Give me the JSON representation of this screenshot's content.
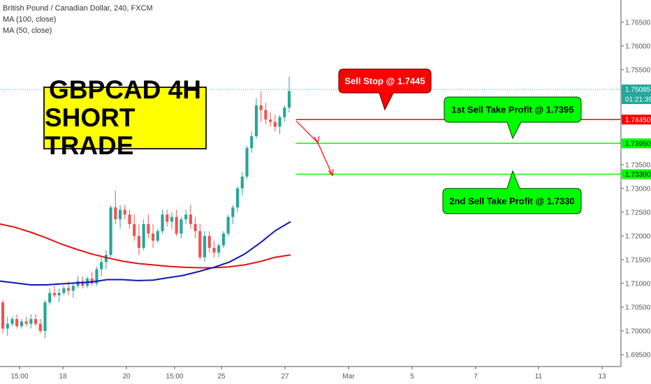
{
  "legend": {
    "symbol": "British Pound / Canadian Dollar, 240, FXCM",
    "ma100": "MA (100, close)",
    "ma50": "MA (50, close)"
  },
  "title_box": {
    "line1": "GBPCAD 4H",
    "line2": "SHORT TRADE"
  },
  "colors": {
    "up": "#26a69a",
    "down": "#ef5350",
    "ma100": "#e31010",
    "ma50": "#0a16b3",
    "sell_stop": "#ff0000",
    "take_profit": "#00ff00",
    "title_bg": "#ffff00"
  },
  "price_axis": {
    "ticks": [
      "1.76500",
      "1.76000",
      "1.75500",
      "1.75000",
      "1.74500",
      "1.74000",
      "1.73500",
      "1.73000",
      "1.72500",
      "1.72000",
      "1.71500",
      "1.71000",
      "1.70500",
      "1.70000",
      "1.69500"
    ],
    "current_price": "1.75085",
    "countdown": "01:21:39",
    "sell_stop_tag": "1.74450",
    "tp1_tag": "1.73950",
    "tp2_tag": "1.73300"
  },
  "time_axis": {
    "ticks": [
      "15:00",
      "18",
      "20",
      "15:00",
      "25",
      "27",
      "Mar",
      "5",
      "7",
      "11",
      "13"
    ]
  },
  "annotations": {
    "sell_stop": "Sell Stop @ 1.7445",
    "tp1": "1st Sell Take Profit @ 1.7395",
    "tp2": "2nd Sell Take Profit @ 1.7330"
  },
  "chart_data": {
    "type": "candlestick",
    "ylim": [
      1.6925,
      1.7685
    ],
    "y_ticks": [
      1.765,
      1.76,
      1.755,
      1.75,
      1.745,
      1.74,
      1.735,
      1.73,
      1.725,
      1.72,
      1.715,
      1.71,
      1.705,
      1.7,
      1.695
    ],
    "levels": {
      "current": 1.75085,
      "sell_stop": 1.7445,
      "take_profit_1": 1.7395,
      "take_profit_2": 1.733
    },
    "candles": [
      [
        1.706,
        1.7065,
        1.6995,
        1.7005
      ],
      [
        1.7005,
        1.703,
        1.699,
        1.7015
      ],
      [
        1.7015,
        1.703,
        1.701,
        1.7025
      ],
      [
        1.7025,
        1.7035,
        1.7005,
        1.701
      ],
      [
        1.701,
        1.7025,
        1.7005,
        1.702
      ],
      [
        1.702,
        1.703,
        1.701,
        1.7015
      ],
      [
        1.7015,
        1.7035,
        1.7005,
        1.7025
      ],
      [
        1.7025,
        1.7035,
        1.701,
        1.7015
      ],
      [
        1.7015,
        1.7025,
        1.6995,
        1.7
      ],
      [
        1.7,
        1.7065,
        1.6985,
        1.706
      ],
      [
        1.706,
        1.709,
        1.7055,
        1.708
      ],
      [
        1.708,
        1.7095,
        1.707,
        1.7075
      ],
      [
        1.7075,
        1.709,
        1.706,
        1.708
      ],
      [
        1.708,
        1.7095,
        1.7075,
        1.709
      ],
      [
        1.709,
        1.7105,
        1.7075,
        1.7085
      ],
      [
        1.7085,
        1.71,
        1.707,
        1.7095
      ],
      [
        1.7095,
        1.7115,
        1.709,
        1.7105
      ],
      [
        1.7105,
        1.7115,
        1.709,
        1.7095
      ],
      [
        1.7095,
        1.7115,
        1.709,
        1.711
      ],
      [
        1.711,
        1.7125,
        1.7095,
        1.71
      ],
      [
        1.71,
        1.7135,
        1.7095,
        1.713
      ],
      [
        1.713,
        1.7155,
        1.7115,
        1.7145
      ],
      [
        1.7145,
        1.717,
        1.713,
        1.716
      ],
      [
        1.716,
        1.7265,
        1.7155,
        1.726
      ],
      [
        1.726,
        1.7295,
        1.7225,
        1.7235
      ],
      [
        1.7235,
        1.7265,
        1.7215,
        1.7255
      ],
      [
        1.7255,
        1.7265,
        1.7235,
        1.7245
      ],
      [
        1.7245,
        1.7255,
        1.7215,
        1.7225
      ],
      [
        1.7225,
        1.7245,
        1.719,
        1.72
      ],
      [
        1.72,
        1.7225,
        1.716,
        1.7175
      ],
      [
        1.7175,
        1.7235,
        1.717,
        1.7225
      ],
      [
        1.7225,
        1.7245,
        1.7195,
        1.7205
      ],
      [
        1.7205,
        1.7225,
        1.7175,
        1.719
      ],
      [
        1.719,
        1.7215,
        1.7185,
        1.721
      ],
      [
        1.721,
        1.7255,
        1.7205,
        1.7245
      ],
      [
        1.7245,
        1.7255,
        1.722,
        1.723
      ],
      [
        1.723,
        1.725,
        1.7215,
        1.724
      ],
      [
        1.724,
        1.7255,
        1.72,
        1.7205
      ],
      [
        1.7205,
        1.724,
        1.7195,
        1.7235
      ],
      [
        1.7235,
        1.7255,
        1.7225,
        1.7245
      ],
      [
        1.7245,
        1.7265,
        1.7215,
        1.7225
      ],
      [
        1.7225,
        1.724,
        1.7195,
        1.721
      ],
      [
        1.721,
        1.7225,
        1.715,
        1.7155
      ],
      [
        1.7155,
        1.721,
        1.7145,
        1.72
      ],
      [
        1.72,
        1.721,
        1.7165,
        1.7175
      ],
      [
        1.7175,
        1.719,
        1.7155,
        1.7165
      ],
      [
        1.7165,
        1.7185,
        1.7155,
        1.718
      ],
      [
        1.718,
        1.721,
        1.7175,
        1.7205
      ],
      [
        1.7205,
        1.7245,
        1.72,
        1.724
      ],
      [
        1.724,
        1.7265,
        1.7225,
        1.726
      ],
      [
        1.726,
        1.7305,
        1.725,
        1.73
      ],
      [
        1.73,
        1.7335,
        1.7285,
        1.7325
      ],
      [
        1.7325,
        1.739,
        1.732,
        1.7385
      ],
      [
        1.7385,
        1.742,
        1.7375,
        1.741
      ],
      [
        1.741,
        1.749,
        1.7405,
        1.7475
      ],
      [
        1.7475,
        1.7505,
        1.744,
        1.7465
      ],
      [
        1.7465,
        1.748,
        1.7435,
        1.7445
      ],
      [
        1.7445,
        1.746,
        1.743,
        1.744
      ],
      [
        1.744,
        1.7455,
        1.742,
        1.743
      ],
      [
        1.743,
        1.7455,
        1.7415,
        1.745
      ],
      [
        1.745,
        1.7475,
        1.744,
        1.747
      ],
      [
        1.747,
        1.7535,
        1.746,
        1.7505
      ]
    ],
    "ma100": [
      1.7225,
      1.7218,
      1.7208,
      1.7196,
      1.7183,
      1.7172,
      1.7162,
      1.7154,
      1.7147,
      1.7142,
      1.7139,
      1.7136,
      1.7134,
      1.7133,
      1.7133,
      1.7135,
      1.7139,
      1.7146,
      1.7155,
      1.716
    ],
    "ma50": [
      1.7105,
      1.7101,
      1.7097,
      1.7097,
      1.7099,
      1.7101,
      1.7103,
      1.7108,
      1.7108,
      1.7106,
      1.7107,
      1.7112,
      1.7117,
      1.7125,
      1.7134,
      1.7145,
      1.7162,
      1.7185,
      1.7211,
      1.723
    ]
  }
}
